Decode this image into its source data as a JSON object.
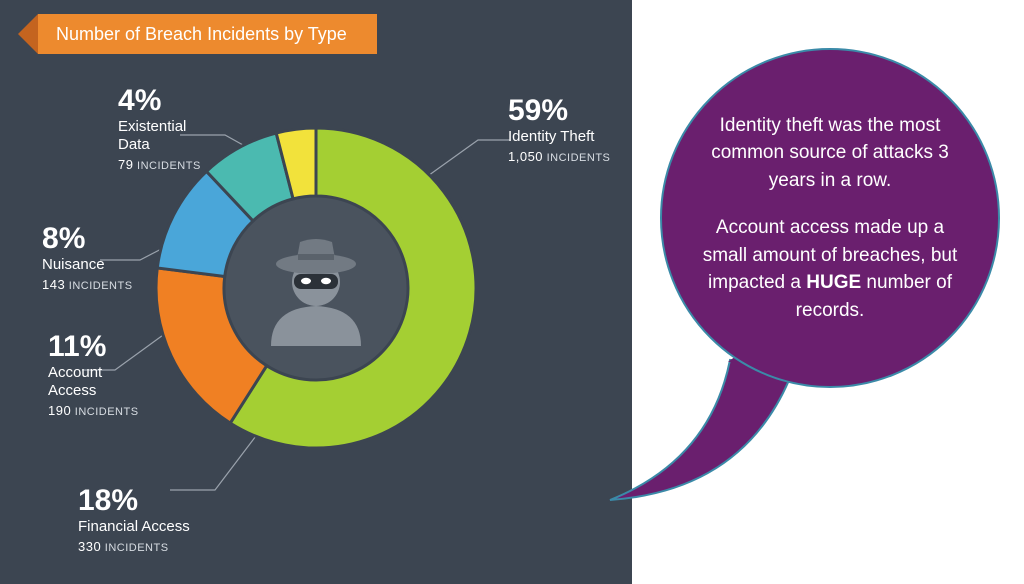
{
  "panel": {
    "background_color": "#3c4551",
    "banner": {
      "text": "Number of Breach Incidents by Type",
      "bg_color": "#ed8a2e",
      "fold_color": "#c4641f",
      "text_color": "#ffffff",
      "fontsize": 18
    }
  },
  "donut": {
    "type": "donut",
    "outer_radius": 160,
    "inner_radius": 92,
    "center_icon": "thief-icon",
    "center_icon_color": "#8a929b",
    "inner_bg_color": "#4a535e",
    "gap_color": "#3c4551",
    "segments": [
      {
        "label": "Identity Theft",
        "percent": 59,
        "incidents": "1,050",
        "color": "#a4cf33"
      },
      {
        "label": "Financial Access",
        "percent": 18,
        "incidents": "330",
        "color": "#f08023"
      },
      {
        "label": "Account Access",
        "percent": 11,
        "incidents": "190",
        "color": "#4aa6d9"
      },
      {
        "label": "Nuisance",
        "percent": 8,
        "incidents": "143",
        "color": "#4bbab0"
      },
      {
        "label": "Existential Data",
        "percent": 4,
        "incidents": "79",
        "color": "#f2e23b"
      },
      {
        "label": "_remainder",
        "percent": 0,
        "incidents": "",
        "color": "#6a2a78",
        "hidden": true
      }
    ],
    "label_fontsize_pct": 30,
    "label_fontsize_name": 15,
    "label_fontsize_count": 11,
    "incidents_word": "INCIDENTS"
  },
  "bubble": {
    "bg_color": "#6a1f6e",
    "border_color": "#3b8aa8",
    "text_color": "#ffffff",
    "fontsize": 19,
    "para1": "Identity theft was the most common source of attacks 3 years in a row.",
    "para2_a": "Account access made up a small amount of breaches, but impacted a ",
    "para2_huge": "HUGE",
    "para2_b": " number of records."
  }
}
